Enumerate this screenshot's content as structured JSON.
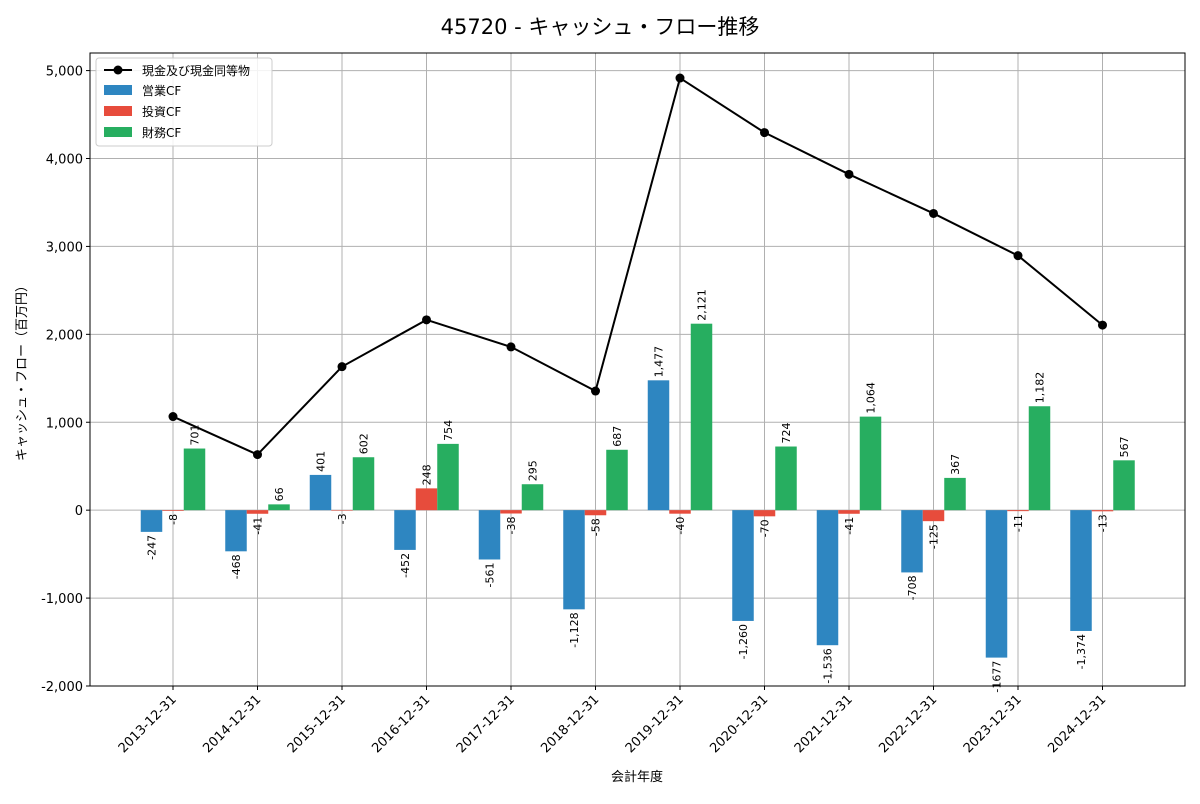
{
  "chart_data": {
    "type": "bar",
    "title": "45720 - キャッシュ・フロー推移",
    "xlabel": "会計年度",
    "ylabel": "キャッシュ・フロー（百万円）",
    "ylim": [
      -2000,
      5200
    ],
    "yticks": [
      -2000,
      -1000,
      0,
      1000,
      2000,
      3000,
      4000,
      5000
    ],
    "ytick_labels": [
      "-2,000",
      "-1,000",
      "0",
      "1,000",
      "2,000",
      "3,000",
      "4,000",
      "5,000"
    ],
    "grid": true,
    "legend_position": "top-left",
    "categories": [
      "2013-12-31",
      "2014-12-31",
      "2015-12-31",
      "2016-12-31",
      "2017-12-31",
      "2018-12-31",
      "2019-12-31",
      "2020-12-31",
      "2021-12-31",
      "2022-12-31",
      "2023-12-31",
      "2024-12-31"
    ],
    "series": [
      {
        "name": "営業CF",
        "kind": "bar",
        "color": "#2e86c1",
        "values": [
          -247,
          -468,
          401,
          -452,
          -561,
          -1128,
          1477,
          -1260,
          -1536,
          -708,
          -1677,
          -1374
        ],
        "labels": [
          "-247",
          "-468",
          "401",
          "-452",
          "-561",
          "-1,128",
          "1,477",
          "-1,260",
          "-1,536",
          "-708",
          "-1677",
          "-1,374"
        ]
      },
      {
        "name": "投資CF",
        "kind": "bar",
        "color": "#e74c3c",
        "values": [
          -8,
          -41,
          -3,
          248,
          -38,
          -58,
          -40,
          -70,
          -41,
          -125,
          -11,
          -13
        ],
        "labels": [
          "-8",
          "-41",
          "-3",
          "248",
          "-38",
          "-58",
          "-40",
          "-70",
          "-41",
          "-125",
          "-11",
          "-13"
        ]
      },
      {
        "name": "財務CF",
        "kind": "bar",
        "color": "#27ae60",
        "values": [
          701,
          66,
          602,
          754,
          295,
          687,
          2121,
          724,
          1064,
          367,
          1182,
          567
        ],
        "labels": [
          "701",
          "66",
          "602",
          "754",
          "295",
          "687",
          "2,121",
          "724",
          "1,064",
          "367",
          "1,182",
          "567"
        ]
      },
      {
        "name": "現金及び現金同等物",
        "kind": "line",
        "color": "#000000",
        "values": [
          1065,
          632,
          1632,
          2165,
          1857,
          1355,
          4915,
          4295,
          3820,
          3375,
          2895,
          2105
        ]
      }
    ]
  }
}
